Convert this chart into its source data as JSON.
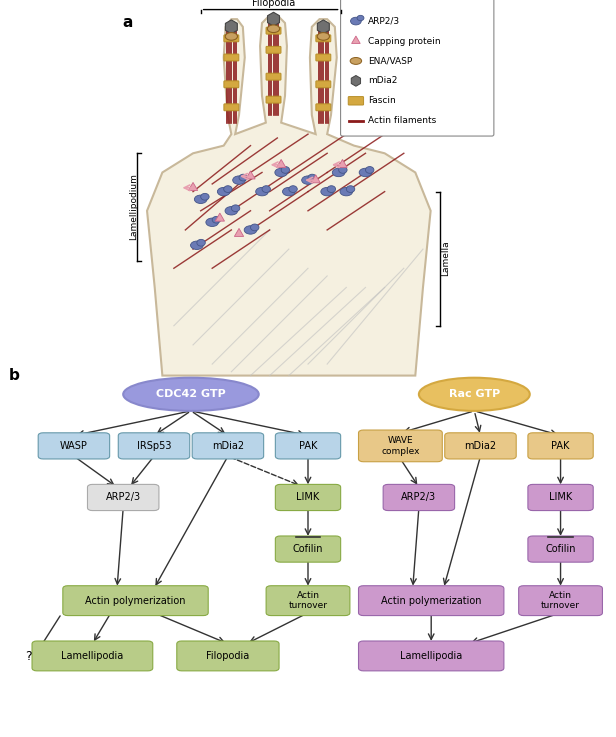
{
  "title_a": "a",
  "title_b": "b",
  "bg_color": "#ffffff",
  "panel_a": {
    "cell_color": "#f5f0e0",
    "cell_border": "#c8b89a",
    "filopodia_label": "Filopodia",
    "lamellipodium_label": "Lamellipodium",
    "lamella_label": "Lamella",
    "actin_dark_color": "#8b1a1a",
    "actin_light_color": "#c0c0c0",
    "arp23_color": "#6a7ab5",
    "capping_color": "#e8a0b0",
    "ena_color": "#c8a060",
    "mdia2_color": "#707070",
    "fascin_color": "#d4a840",
    "legend_items": [
      "ARP2/3",
      "Capping protein",
      "ENA/VASP",
      "mDia2",
      "Fascin",
      "Actin filaments"
    ]
  },
  "panel_b": {
    "cdc42_color": "#8888cc",
    "cdc42_fill": "#9999dd",
    "rac_color": "#d4a840",
    "rac_fill": "#e8c060",
    "box_blue_fill": "#b8d4e8",
    "box_blue_border": "#6699aa",
    "box_gray_fill": "#e0e0e0",
    "box_gray_border": "#aaaaaa",
    "box_green_fill": "#b8cc88",
    "box_green_border": "#88aa44",
    "box_purple_fill": "#cc99cc",
    "box_purple_border": "#9966aa",
    "box_orange_fill": "#e8c888",
    "box_orange_border": "#c8a044",
    "arrow_color": "#333333",
    "text_color": "#333333",
    "cdc42_label": "CDC42 GTP",
    "rac_label": "Rac GTP",
    "cdc42_nodes_row1": [
      "WASP",
      "IRSp53",
      "mDia2",
      "PAK"
    ],
    "cdc42_nodes_row2": [
      "ARP2/3",
      "LIMK"
    ],
    "cdc42_nodes_row3": [
      "Cofilin"
    ],
    "cdc42_nodes_row4_left": "Actin polymerization",
    "cdc42_nodes_row4_right": "Actin\nturnover",
    "cdc42_nodes_row5_left": "Lamellipodia",
    "cdc42_nodes_row5_right": "Filopodia",
    "rac_nodes_row1": [
      "WAVE\ncomplex",
      "mDia2",
      "PAK"
    ],
    "rac_nodes_row2": [
      "ARP2/3",
      "LIMK"
    ],
    "rac_nodes_row3": [
      "Cofilin"
    ],
    "rac_nodes_row4_left": "Actin polymerization",
    "rac_nodes_row4_right": "Actin\nturnover",
    "rac_nodes_row5": "Lamellipodia"
  }
}
